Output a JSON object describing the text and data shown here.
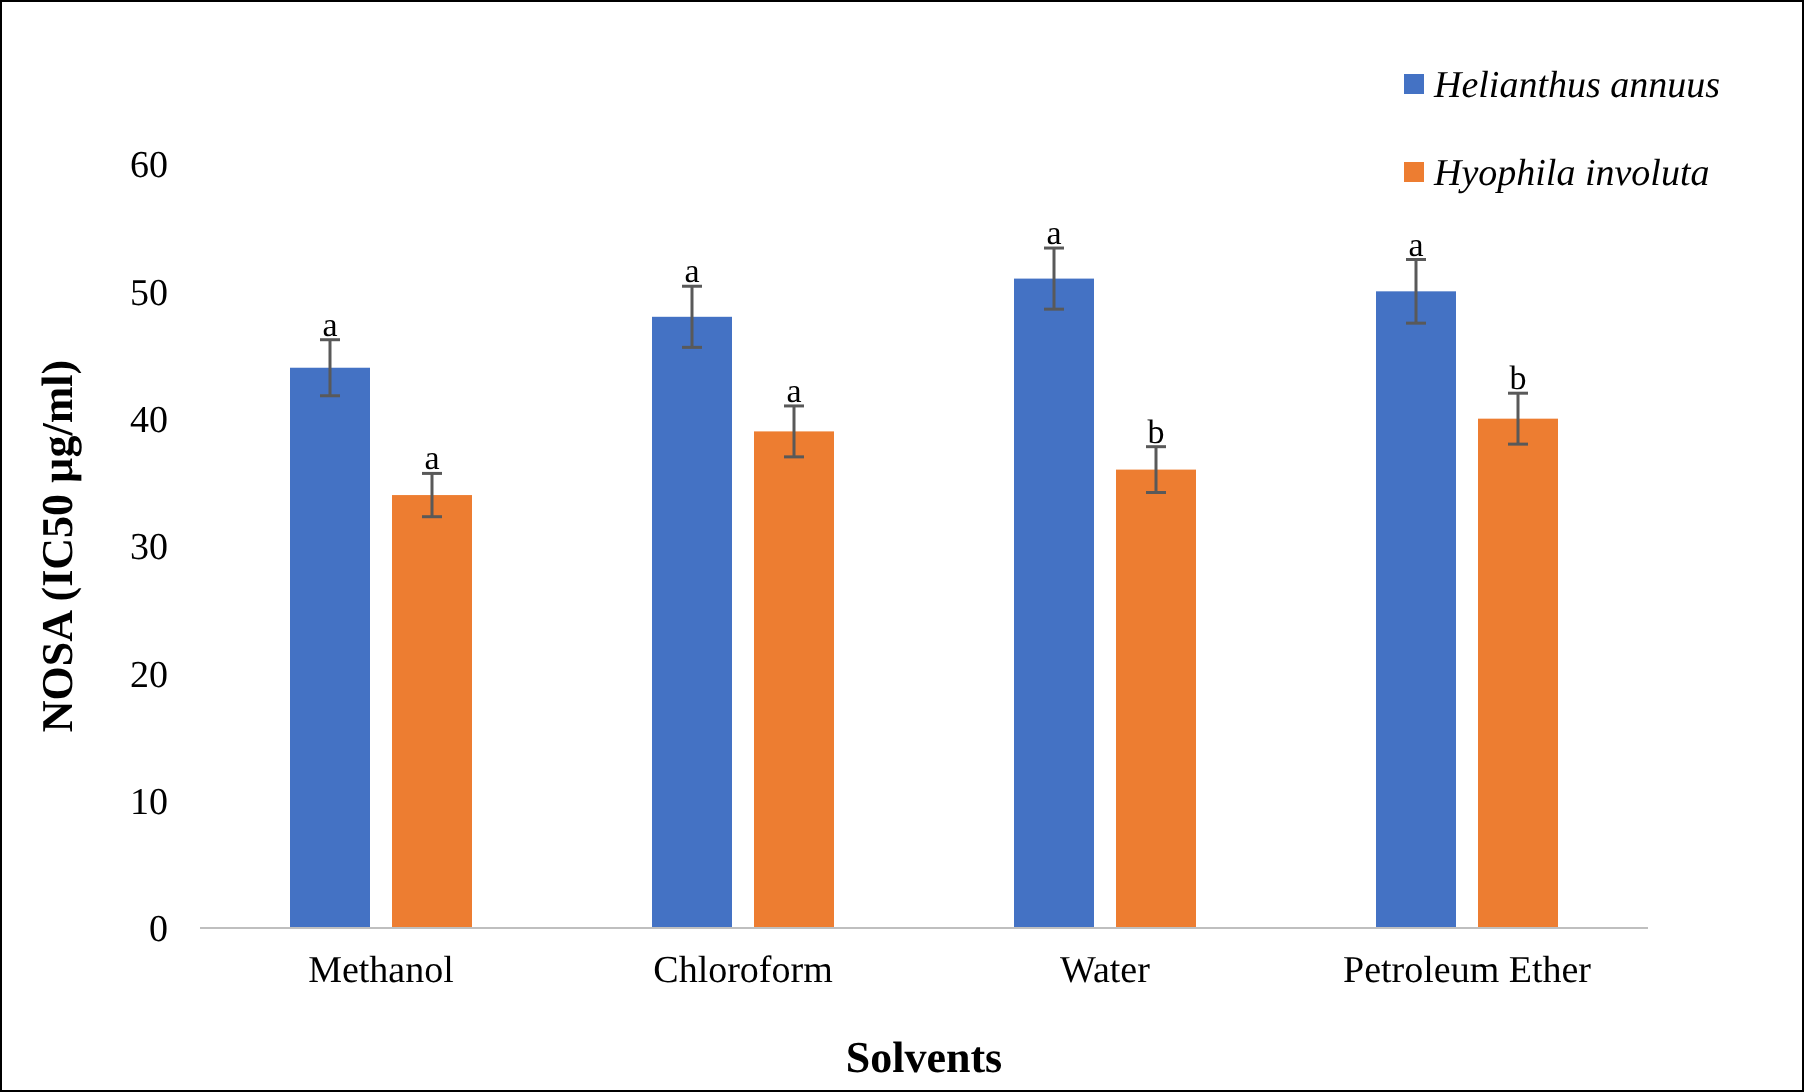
{
  "chart_data": {
    "type": "bar",
    "xlabel": "Solvents",
    "ylabel": "NOSA (IC50 µg/ml)",
    "categories": [
      "Methanol",
      "Chloroform",
      "Water",
      "Petroleum Ether"
    ],
    "series": [
      {
        "name": "Helianthus annuus",
        "color": "#4472c4",
        "values": [
          44,
          48,
          51,
          50
        ],
        "errors": [
          2.2,
          2.4,
          2.4,
          2.5
        ],
        "value_labels": [
          "a",
          "a",
          "a",
          "a"
        ]
      },
      {
        "name": "Hyophila involuta",
        "color": "#ed7d31",
        "values": [
          34,
          39,
          36,
          40
        ],
        "errors": [
          1.7,
          2,
          1.8,
          2
        ],
        "value_labels": [
          "a",
          "a",
          "b",
          "b"
        ]
      }
    ],
    "ylim": [
      0,
      60
    ],
    "yticks": [
      0,
      10,
      20,
      30,
      40,
      50,
      60
    ],
    "grid": false,
    "legend": "top right"
  }
}
